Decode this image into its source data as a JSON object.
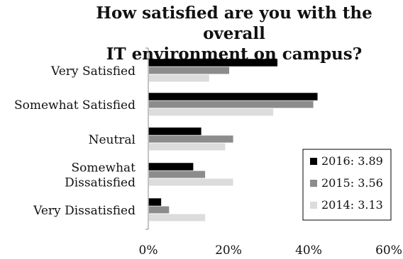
{
  "chart_data": {
    "type": "bar",
    "orientation": "horizontal",
    "title": "How satisfied are you with the overall IT environment on campus?",
    "title_lines": [
      "How satisfied are you with the overall",
      "IT environment on campus?"
    ],
    "xlabel": "",
    "ylabel": "",
    "categories": [
      [
        "Very Satisfied"
      ],
      [
        "Somewhat Satisfied"
      ],
      [
        "Neutral"
      ],
      [
        "Somewhat",
        "Dissatisfied"
      ],
      [
        "Very Dissatisfied"
      ]
    ],
    "series": [
      {
        "name": "2016: 3.89",
        "color": "#000000",
        "values": [
          32,
          42,
          13,
          11,
          3
        ]
      },
      {
        "name": "2015: 3.56",
        "color": "#8c8c8c",
        "values": [
          20,
          41,
          21,
          14,
          5
        ]
      },
      {
        "name": "2014: 3.13",
        "color": "#dcdcdc",
        "values": [
          15,
          31,
          19,
          21,
          14
        ]
      }
    ],
    "xlim": [
      0,
      60
    ],
    "xticks": [
      0,
      20,
      40,
      60
    ],
    "tick_suffix": "%",
    "grid": false,
    "legend_position": "bottom-right"
  }
}
